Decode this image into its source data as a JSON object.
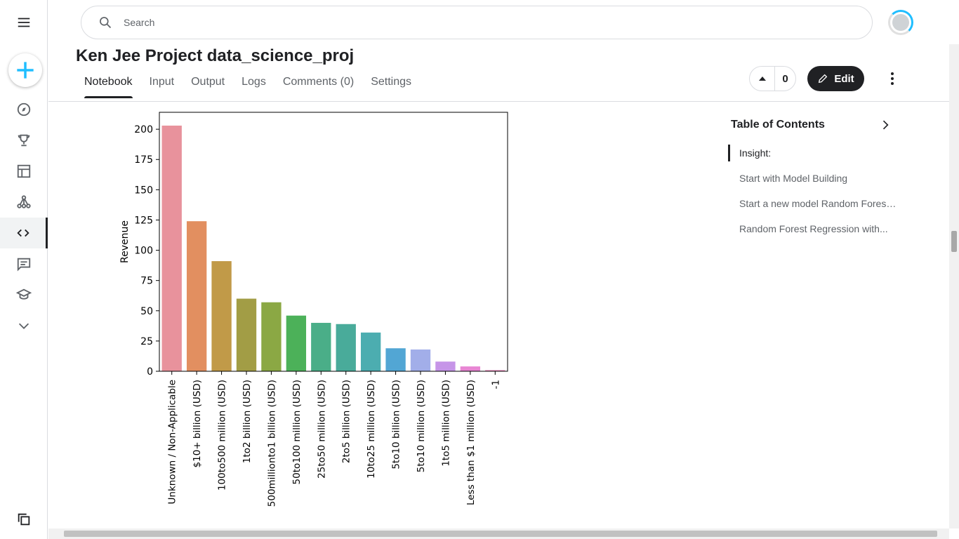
{
  "search": {
    "placeholder": "Search"
  },
  "notebook": {
    "title": "Ken Jee Project data_science_proj",
    "tabs": [
      "Notebook",
      "Input",
      "Output",
      "Logs",
      "Comments (0)",
      "Settings"
    ],
    "active_tab": "Notebook",
    "vote_count": "0",
    "edit_label": "Edit"
  },
  "toc": {
    "title": "Table of Contents",
    "items": [
      "Insight:",
      "Start with Model Building",
      "Start a new model Random Forest Regression",
      "Random Forest Regression with..."
    ]
  },
  "colors": {
    "accent": "#20beff",
    "dark": "#202124"
  },
  "chart_data": {
    "type": "bar",
    "ylabel": "Revenue",
    "xlabel": "",
    "ylim": [
      0,
      214
    ],
    "yticks": [
      0,
      25,
      50,
      75,
      100,
      125,
      150,
      175,
      200
    ],
    "categories": [
      "Unknown / Non-Applicable",
      "$10+ billion (USD)",
      "100to500 million (USD)",
      "1to2 billion (USD)",
      "500millionto1 billion (USD)",
      "50to100 million (USD)",
      "25to50 million (USD)",
      "2to5 billion (USD)",
      "10to25 million (USD)",
      "5to10 billion (USD)",
      "5to10 million (USD)",
      "1to5 million (USD)",
      "Less than $1 million (USD)",
      "-1"
    ],
    "values": [
      203,
      124,
      91,
      60,
      57,
      46,
      40,
      39,
      32,
      19,
      18,
      8,
      4,
      1
    ],
    "colors": [
      "#e8929c",
      "#e28f60",
      "#c19a48",
      "#a29d45",
      "#8ba844",
      "#4cb159",
      "#4aae88",
      "#49ab9a",
      "#4cadb0",
      "#52a6d4",
      "#a2aee9",
      "#c695e8",
      "#e886d3",
      "#e890bd"
    ]
  }
}
